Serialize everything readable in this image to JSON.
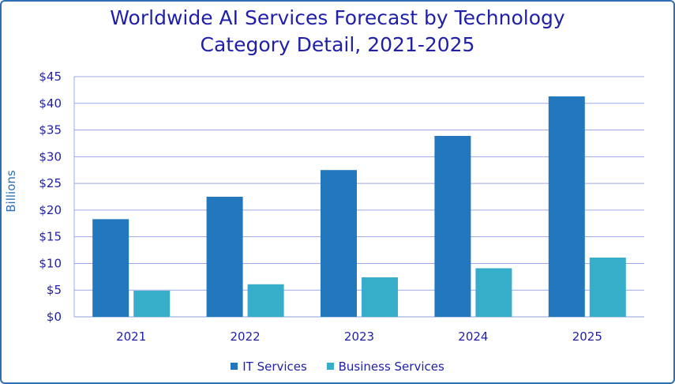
{
  "chart_data": {
    "type": "bar",
    "title_line1": "Worldwide AI Services Forecast by Technology",
    "title_line2": "Category Detail, 2021-2025",
    "ylabel": "Billions",
    "xlabel": "",
    "categories": [
      "2021",
      "2022",
      "2023",
      "2024",
      "2025"
    ],
    "ylim": [
      0,
      45
    ],
    "yticks": [
      0,
      5,
      10,
      15,
      20,
      25,
      30,
      35,
      40,
      45
    ],
    "ytick_labels": [
      "$0",
      "$5",
      "$10",
      "$15",
      "$20",
      "$25",
      "$30",
      "$35",
      "$40",
      "$45"
    ],
    "grid": true,
    "legend_position": "bottom",
    "series": [
      {
        "name": "IT Services",
        "color": "#2277bd",
        "values": [
          18.3,
          22.5,
          27.5,
          33.9,
          41.3
        ]
      },
      {
        "name": "Business Services",
        "color": "#36adc9",
        "values": [
          4.9,
          6.1,
          7.4,
          9.1,
          11.1
        ]
      }
    ]
  }
}
